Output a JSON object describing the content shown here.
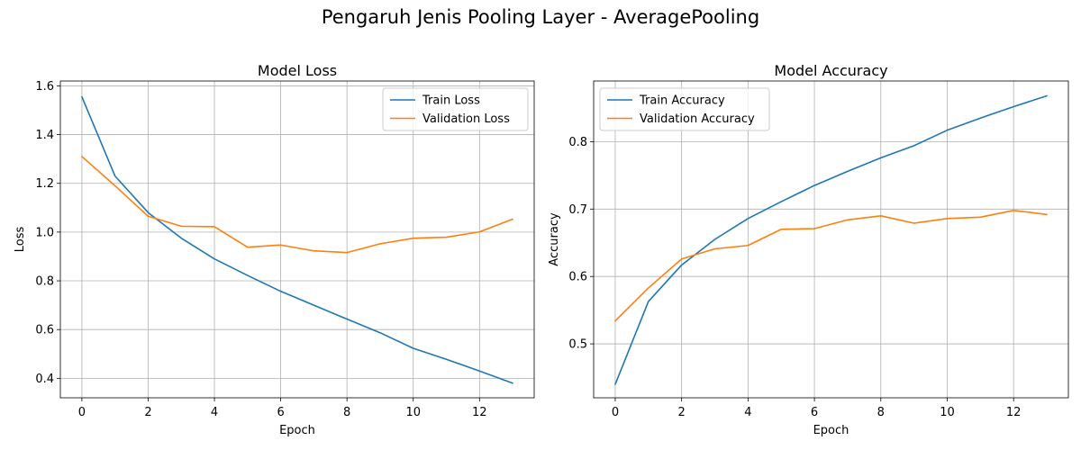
{
  "figure": {
    "suptitle": "Pengaruh Jenis Pooling Layer - AveragePooling"
  },
  "colors": {
    "train": "#1f77b4",
    "validation": "#ff7f0e"
  },
  "chart_data": [
    {
      "type": "line",
      "title": "Model Loss",
      "xlabel": "Epoch",
      "ylabel": "Loss",
      "grid": true,
      "legend": "top-right",
      "x": [
        0,
        1,
        2,
        3,
        4,
        5,
        6,
        7,
        8,
        9,
        10,
        11,
        12,
        13
      ],
      "xlim": [
        -0.65,
        13.65
      ],
      "ylim": [
        0.32,
        1.62
      ],
      "xticks": [
        0,
        2,
        4,
        6,
        8,
        10,
        12
      ],
      "yticks": [
        0.4,
        0.6,
        0.8,
        1.0,
        1.2,
        1.4,
        1.6
      ],
      "ytick_labels": [
        "0.4",
        "0.6",
        "0.8",
        "1.0",
        "1.2",
        "1.4",
        "1.6"
      ],
      "series": [
        {
          "name": "Train Loss",
          "color": "#1f77b4",
          "values": [
            1.555,
            1.23,
            1.08,
            0.975,
            0.89,
            0.822,
            0.757,
            0.7,
            0.643,
            0.587,
            0.523,
            0.478,
            0.43,
            0.38
          ]
        },
        {
          "name": "Validation Loss",
          "color": "#ff7f0e",
          "values": [
            1.31,
            1.19,
            1.065,
            1.024,
            1.022,
            0.938,
            0.947,
            0.923,
            0.916,
            0.952,
            0.975,
            0.979,
            1.001,
            1.053
          ]
        }
      ]
    },
    {
      "type": "line",
      "title": "Model Accuracy",
      "xlabel": "Epoch",
      "ylabel": "Accuracy",
      "grid": true,
      "legend": "top-left",
      "x": [
        0,
        1,
        2,
        3,
        4,
        5,
        6,
        7,
        8,
        9,
        10,
        11,
        12,
        13
      ],
      "xlim": [
        -0.65,
        13.65
      ],
      "ylim": [
        0.42,
        0.89
      ],
      "xticks": [
        0,
        2,
        4,
        6,
        8,
        10,
        12
      ],
      "yticks": [
        0.5,
        0.6,
        0.7,
        0.8
      ],
      "ytick_labels": [
        "0.5",
        "0.6",
        "0.7",
        "0.8"
      ],
      "series": [
        {
          "name": "Train Accuracy",
          "color": "#1f77b4",
          "values": [
            0.44,
            0.563,
            0.617,
            0.655,
            0.686,
            0.711,
            0.735,
            0.756,
            0.776,
            0.794,
            0.817,
            0.835,
            0.852,
            0.868
          ]
        },
        {
          "name": "Validation Accuracy",
          "color": "#ff7f0e",
          "values": [
            0.534,
            0.583,
            0.626,
            0.641,
            0.646,
            0.67,
            0.671,
            0.684,
            0.69,
            0.679,
            0.686,
            0.688,
            0.698,
            0.692
          ]
        }
      ]
    }
  ]
}
